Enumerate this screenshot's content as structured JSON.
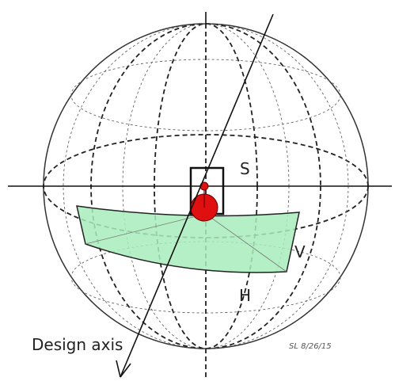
{
  "labels": {
    "s": "S",
    "v": "V",
    "h": "H",
    "design_axis": "Design axis",
    "signature": "SL 8/26/15"
  }
}
